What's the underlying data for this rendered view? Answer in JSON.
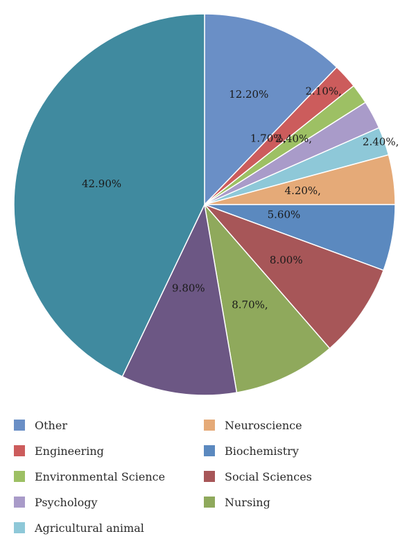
{
  "chart_data": {
    "type": "pie",
    "title": "",
    "categories": [
      "Other",
      "Engineering",
      "Environmental Science",
      "Psychology",
      "Agricultural animal",
      "Neuroscience",
      "Biochemistry",
      "Social Sciences",
      "Nursing",
      "",
      ""
    ],
    "values": [
      12.2,
      2.1,
      1.7,
      2.4,
      2.4,
      4.2,
      5.6,
      8.0,
      8.7,
      9.8,
      42.9
    ],
    "labels": [
      "12.20%",
      "2.10%,",
      "1.70%,",
      "2.40%,",
      "2.40%,",
      "4.20%,",
      "5.60%",
      "8.00%",
      "8.70%,",
      "9.80%",
      "42.90%"
    ],
    "colors": [
      "#6a8fc6",
      "#cc5c5c",
      "#9dc064",
      "#a99bc9",
      "#8ec8d8",
      "#e5aa78",
      "#5b89bf",
      "#a75658",
      "#8fa95c",
      "#6c5784",
      "#408a9f"
    ],
    "legend_position": "bottom",
    "legend": [
      {
        "label": "Other",
        "color": "#6a8fc6"
      },
      {
        "label": "Engineering",
        "color": "#cc5c5c"
      },
      {
        "label": "Environmental Science",
        "color": "#9dc064"
      },
      {
        "label": "Psychology",
        "color": "#a99bc9"
      },
      {
        "label": "Agricultural animal",
        "color": "#8ec8d8"
      },
      {
        "label": "Neuroscience",
        "color": "#e5aa78"
      },
      {
        "label": "Biochemistry",
        "color": "#5b89bf"
      },
      {
        "label": "Social Sciences",
        "color": "#a75658"
      },
      {
        "label": "Nursing",
        "color": "#8fa95c"
      }
    ]
  }
}
